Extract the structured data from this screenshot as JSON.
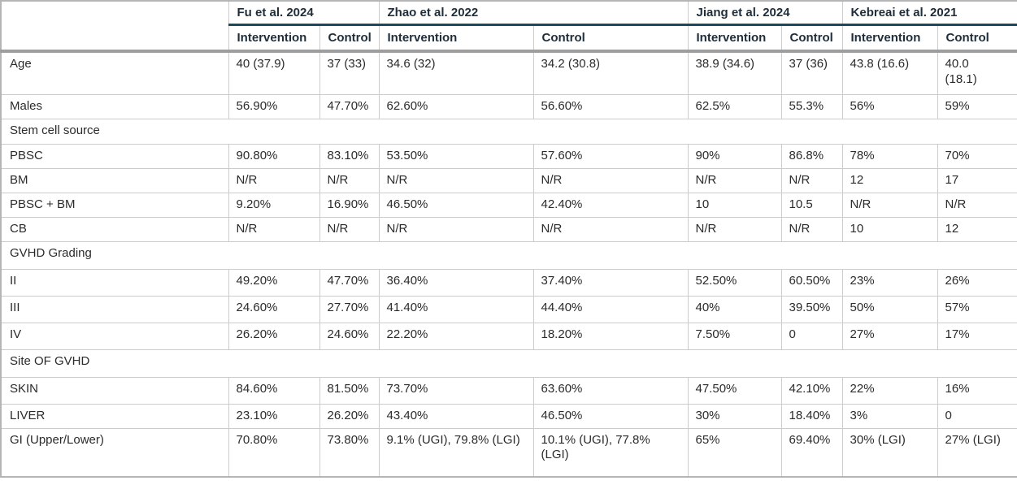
{
  "colors": {
    "accent_underline": "#1a4a5d",
    "thick_divider": "#9e9e9e",
    "cell_border": "#cccccc",
    "outer_border": "#b5b5b5",
    "header_text": "#1f2e3a",
    "body_text": "#2b2b2b",
    "background": "#ffffff"
  },
  "chart_data": {
    "type": "table",
    "title": "",
    "corner_label": "",
    "column_groups": [
      {
        "label": "Fu et al. 2024",
        "span": 2
      },
      {
        "label": "Zhao et al. 2022",
        "span": 2
      },
      {
        "label": "Jiang et al. 2024",
        "span": 2
      },
      {
        "label": "Kebreai et al. 2021",
        "span": 2
      }
    ],
    "sub_headers": [
      "Intervention",
      "Control",
      "Intervention",
      "Control",
      "Intervention",
      "Control",
      "Intervention",
      "Control"
    ],
    "rows": [
      {
        "type": "data",
        "label": "Age",
        "values": [
          "40 (37.9)",
          "37 (33)",
          "34.6 (32)",
          "34.2 (30.8)",
          "38.9 (34.6)",
          "37 (36)",
          "43.8 (16.6)",
          "40.0 (18.1)"
        ]
      },
      {
        "type": "data",
        "label": "Males",
        "values": [
          "56.90%",
          "47.70%",
          "62.60%",
          "56.60%",
          "62.5%",
          "55.3%",
          "56%",
          "59%"
        ]
      },
      {
        "type": "section",
        "label": "Stem cell source"
      },
      {
        "type": "data",
        "label": "PBSC",
        "values": [
          "90.80%",
          "83.10%",
          "53.50%",
          "57.60%",
          "90%",
          "86.8%",
          "78%",
          "70%"
        ]
      },
      {
        "type": "data",
        "label": "BM",
        "values": [
          "N/R",
          "N/R",
          "N/R",
          "N/R",
          "N/R",
          "N/R",
          "12",
          "17"
        ]
      },
      {
        "type": "data",
        "label": "PBSC + BM",
        "values": [
          "9.20%",
          "16.90%",
          "46.50%",
          "42.40%",
          "10",
          "10.5",
          "N/R",
          "N/R"
        ]
      },
      {
        "type": "data",
        "label": "CB",
        "values": [
          "N/R",
          "N/R",
          "N/R",
          "N/R",
          "N/R",
          "N/R",
          "10",
          "12"
        ]
      },
      {
        "type": "section",
        "label": "GVHD Grading"
      },
      {
        "type": "data",
        "label": "II",
        "values": [
          "49.20%",
          "47.70%",
          "36.40%",
          "37.40%",
          "52.50%",
          "60.50%",
          "23%",
          "26%"
        ]
      },
      {
        "type": "data",
        "label": "III",
        "values": [
          "24.60%",
          "27.70%",
          "41.40%",
          "44.40%",
          "40%",
          "39.50%",
          "50%",
          "57%"
        ]
      },
      {
        "type": "data",
        "label": "IV",
        "values": [
          "26.20%",
          "24.60%",
          "22.20%",
          "18.20%",
          "7.50%",
          "0",
          "27%",
          "17%"
        ]
      },
      {
        "type": "section",
        "label": "Site OF GVHD"
      },
      {
        "type": "data",
        "label": "SKIN",
        "values": [
          "84.60%",
          "81.50%",
          "73.70%",
          "63.60%",
          "47.50%",
          "42.10%",
          "22%",
          "16%"
        ]
      },
      {
        "type": "data",
        "label": "LIVER",
        "values": [
          "23.10%",
          "26.20%",
          "43.40%",
          "46.50%",
          "30%",
          "18.40%",
          "3%",
          "0"
        ]
      },
      {
        "type": "data",
        "label": "GI (Upper/Lower)",
        "values": [
          "70.80%",
          "73.80%",
          "9.1% (UGI), 79.8% (LGI)",
          "10.1% (UGI), 77.8% (LGI)",
          "65%",
          "69.40%",
          "30% (LGI)",
          "27% (LGI)"
        ]
      }
    ]
  }
}
